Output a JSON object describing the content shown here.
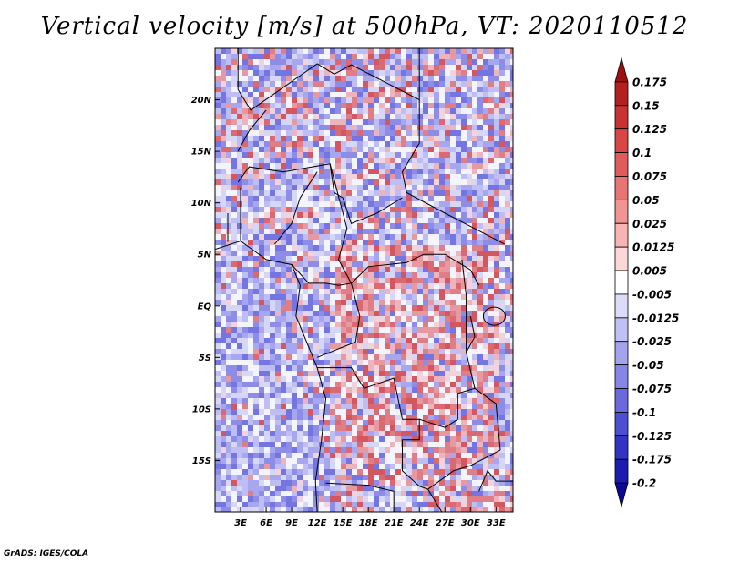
{
  "title": "Vertical velocity [m/s] at 500hPa, VT: 2020110512",
  "footer": "GrADS: IGES/COLA",
  "map": {
    "lon_range": [
      0,
      35
    ],
    "lat_range": [
      -20,
      25
    ],
    "lat_labels": [
      "20N",
      "15N",
      "10N",
      "5N",
      "EQ",
      "5S",
      "10S",
      "15S"
    ],
    "lat_values": [
      20,
      15,
      10,
      5,
      0,
      -5,
      -10,
      -15
    ],
    "lon_labels": [
      "3E",
      "6E",
      "9E",
      "12E",
      "15E",
      "18E",
      "21E",
      "24E",
      "27E",
      "30E",
      "33E"
    ],
    "lon_values": [
      3,
      6,
      9,
      12,
      15,
      18,
      21,
      24,
      27,
      30,
      33
    ]
  },
  "colorbar": {
    "labels": [
      "0.175",
      "0.15",
      "0.125",
      "0.1",
      "0.075",
      "0.05",
      "0.025",
      "0.0125",
      "0.005",
      "-0.005",
      "-0.0125",
      "-0.025",
      "-0.05",
      "-0.075",
      "-0.1",
      "-0.125",
      "-0.175",
      "-0.2"
    ],
    "colors": [
      "#a01010",
      "#b42020",
      "#c83232",
      "#d84646",
      "#e05c5c",
      "#e87474",
      "#f09494",
      "#f6b4b4",
      "#fad8d8",
      "#ffffff",
      "#dcdcf8",
      "#c0c0f4",
      "#a4a4ee",
      "#8686e6",
      "#6a6ade",
      "#4e4ed2",
      "#3232c4",
      "#1c1cb0",
      "#0a0a96"
    ]
  }
}
